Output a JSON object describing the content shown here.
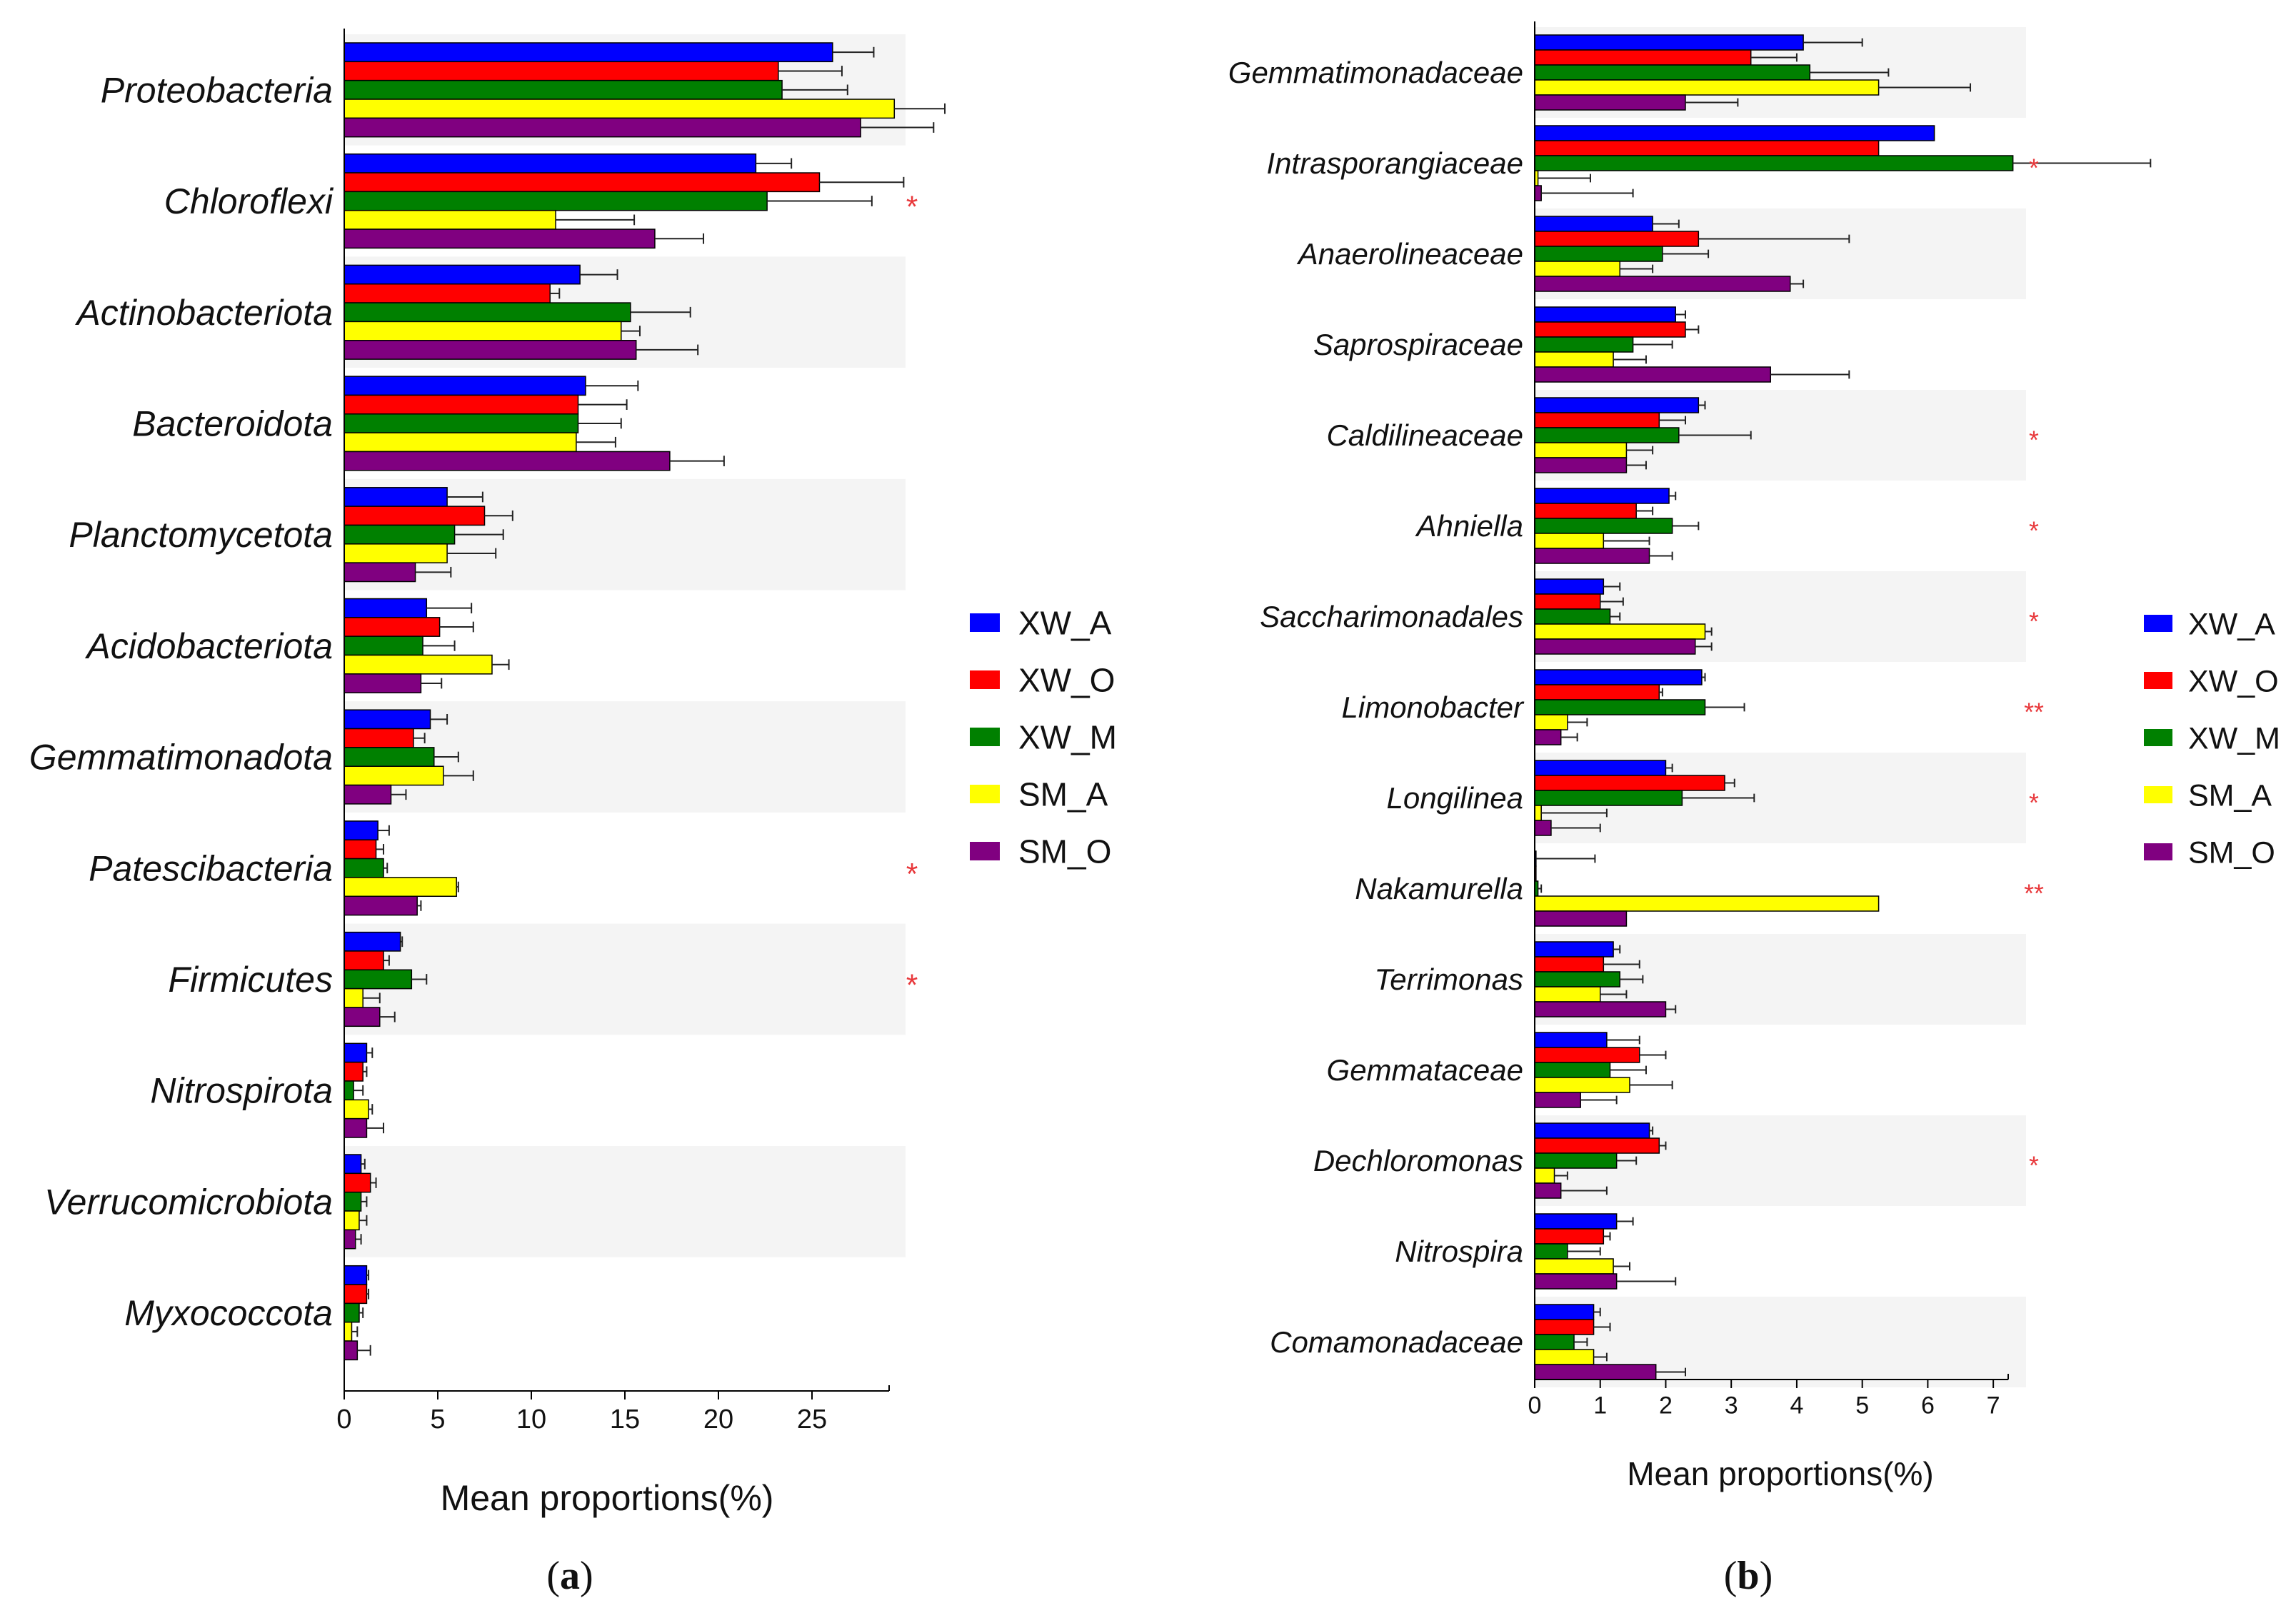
{
  "series_colors": {
    "XW_A": "#0000ff",
    "XW_O": "#ff0000",
    "XW_M": "#008000",
    "SM_A": "#ffff00",
    "SM_O": "#800080"
  },
  "chart_data": [
    {
      "type": "bar",
      "orientation": "horizontal",
      "panel_label": "(a)",
      "xlabel": "Mean proportions(%)",
      "ylabel": "",
      "xlim": [
        0,
        30
      ],
      "xticks": [
        0,
        5,
        10,
        15,
        20,
        25
      ],
      "legend_position": "right",
      "series_names": [
        "XW_A",
        "XW_O",
        "XW_M",
        "SM_A",
        "SM_O"
      ],
      "categories": [
        {
          "name": "Proteobacteria",
          "values": [
            26.1,
            23.2,
            23.4,
            29.4,
            27.6
          ],
          "errors": [
            2.2,
            3.4,
            3.5,
            2.7,
            3.9
          ],
          "sig": ""
        },
        {
          "name": "Chloroflexi",
          "values": [
            22.0,
            25.4,
            22.6,
            11.3,
            16.6
          ],
          "errors": [
            1.9,
            4.5,
            5.6,
            4.2,
            2.6
          ],
          "sig": "*"
        },
        {
          "name": "Actinobacteriota",
          "values": [
            12.6,
            11.0,
            15.3,
            14.8,
            15.6
          ],
          "errors": [
            2.0,
            0.5,
            3.2,
            1.0,
            3.3
          ],
          "sig": ""
        },
        {
          "name": "Bacteroidota",
          "values": [
            12.9,
            12.5,
            12.5,
            12.4,
            17.4
          ],
          "errors": [
            2.8,
            2.6,
            2.3,
            2.1,
            2.9
          ],
          "sig": ""
        },
        {
          "name": "Planctomycetota",
          "values": [
            5.5,
            7.5,
            5.9,
            5.5,
            3.8
          ],
          "errors": [
            1.9,
            1.5,
            2.6,
            2.6,
            1.9
          ],
          "sig": ""
        },
        {
          "name": "Acidobacteriota",
          "values": [
            4.4,
            5.1,
            4.2,
            7.9,
            4.1
          ],
          "errors": [
            2.4,
            1.8,
            1.7,
            0.9,
            1.1
          ],
          "sig": ""
        },
        {
          "name": "Gemmatimonadota",
          "values": [
            4.6,
            3.7,
            4.8,
            5.3,
            2.5
          ],
          "errors": [
            0.9,
            0.6,
            1.3,
            1.6,
            0.8
          ],
          "sig": ""
        },
        {
          "name": "Patescibacteria",
          "values": [
            1.8,
            1.7,
            2.1,
            6.0,
            3.9
          ],
          "errors": [
            0.6,
            0.4,
            0.2,
            0.1,
            0.2
          ],
          "sig": "*"
        },
        {
          "name": "Firmicutes",
          "values": [
            3.0,
            2.1,
            3.6,
            1.0,
            1.9
          ],
          "errors": [
            0.1,
            0.3,
            0.8,
            0.9,
            0.8
          ],
          "sig": "*"
        },
        {
          "name": "Nitrospirota",
          "values": [
            1.2,
            1.0,
            0.5,
            1.3,
            1.2
          ],
          "errors": [
            0.3,
            0.2,
            0.5,
            0.2,
            0.9
          ],
          "sig": ""
        },
        {
          "name": "Verrucomicrobiota",
          "values": [
            0.9,
            1.4,
            0.9,
            0.8,
            0.6
          ],
          "errors": [
            0.2,
            0.3,
            0.3,
            0.4,
            0.3
          ],
          "sig": ""
        },
        {
          "name": "Myxococcota",
          "values": [
            1.2,
            1.2,
            0.8,
            0.4,
            0.7
          ],
          "errors": [
            0.1,
            0.1,
            0.2,
            0.3,
            0.7
          ],
          "sig": ""
        }
      ]
    },
    {
      "type": "bar",
      "orientation": "horizontal",
      "panel_label": "(b)",
      "xlabel": "Mean proportions(%)",
      "ylabel": "",
      "xlim": [
        0,
        7.5
      ],
      "xticks": [
        0,
        1,
        2,
        3,
        4,
        5,
        6,
        7
      ],
      "legend_position": "right",
      "series_names": [
        "XW_A",
        "XW_O",
        "XW_M",
        "SM_A",
        "SM_O"
      ],
      "categories": [
        {
          "name": "Gemmatimonadaceae",
          "values": [
            4.1,
            3.3,
            4.2,
            5.25,
            2.3
          ],
          "errors": [
            0.9,
            0.7,
            1.2,
            1.4,
            0.8
          ],
          "sig": ""
        },
        {
          "name": "Intrasporangiaceae",
          "values": [
            6.1,
            5.25,
            7.3,
            0.05,
            0.1
          ],
          "errors": [
            0.0,
            0.0,
            2.1,
            0.8,
            1.4
          ],
          "sig": "*"
        },
        {
          "name": "Anaerolineaceae",
          "values": [
            1.8,
            2.5,
            1.95,
            1.3,
            3.9
          ],
          "errors": [
            0.4,
            2.3,
            0.7,
            0.5,
            0.2
          ],
          "sig": ""
        },
        {
          "name": "Saprospiraceae",
          "values": [
            2.15,
            2.3,
            1.5,
            1.2,
            3.6
          ],
          "errors": [
            0.15,
            0.2,
            0.6,
            0.5,
            1.2
          ],
          "sig": ""
        },
        {
          "name": "Caldilineaceae",
          "values": [
            2.5,
            1.9,
            2.2,
            1.4,
            1.4
          ],
          "errors": [
            0.1,
            0.4,
            1.1,
            0.4,
            0.3
          ],
          "sig": "*"
        },
        {
          "name": "Ahniella",
          "values": [
            2.05,
            1.55,
            2.1,
            1.05,
            1.75
          ],
          "errors": [
            0.1,
            0.25,
            0.4,
            0.7,
            0.35
          ],
          "sig": "*"
        },
        {
          "name": "Saccharimonadales",
          "values": [
            1.05,
            1.0,
            1.15,
            2.6,
            2.45
          ],
          "errors": [
            0.25,
            0.35,
            0.15,
            0.1,
            0.25
          ],
          "sig": "*"
        },
        {
          "name": "Limonobacter",
          "values": [
            2.55,
            1.9,
            2.6,
            0.5,
            0.4
          ],
          "errors": [
            0.05,
            0.05,
            0.6,
            0.3,
            0.25
          ],
          "sig": "**"
        },
        {
          "name": "Longilinea",
          "values": [
            2.0,
            2.9,
            2.25,
            0.1,
            0.25
          ],
          "errors": [
            0.1,
            0.15,
            1.1,
            1.0,
            0.75
          ],
          "sig": "*"
        },
        {
          "name": "Nakamurella",
          "values": [
            0.02,
            0.02,
            0.05,
            5.25,
            1.4
          ],
          "errors": [
            0.9,
            0.0,
            0.05,
            0.0,
            0.0
          ],
          "sig": "**"
        },
        {
          "name": "Terrimonas",
          "values": [
            1.2,
            1.05,
            1.3,
            1.0,
            2.0
          ],
          "errors": [
            0.1,
            0.55,
            0.35,
            0.4,
            0.15
          ],
          "sig": ""
        },
        {
          "name": "Gemmataceae",
          "values": [
            1.1,
            1.6,
            1.15,
            1.45,
            0.7
          ],
          "errors": [
            0.5,
            0.4,
            0.55,
            0.65,
            0.55
          ],
          "sig": ""
        },
        {
          "name": "Dechloromonas",
          "values": [
            1.75,
            1.9,
            1.25,
            0.3,
            0.4
          ],
          "errors": [
            0.05,
            0.1,
            0.3,
            0.2,
            0.7
          ],
          "sig": "*"
        },
        {
          "name": "Nitrospira",
          "values": [
            1.25,
            1.05,
            0.5,
            1.2,
            1.25
          ],
          "errors": [
            0.25,
            0.1,
            0.5,
            0.25,
            0.9
          ],
          "sig": ""
        },
        {
          "name": "Comamonadaceae",
          "values": [
            0.9,
            0.9,
            0.6,
            0.9,
            1.85
          ],
          "errors": [
            0.1,
            0.25,
            0.2,
            0.2,
            0.45
          ],
          "sig": ""
        }
      ]
    }
  ]
}
